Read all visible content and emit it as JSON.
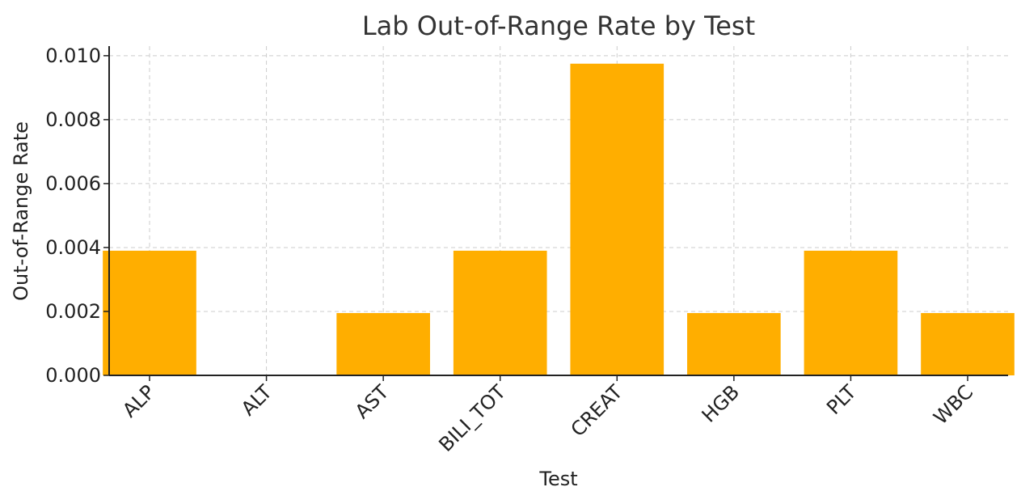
{
  "chart_data": {
    "type": "bar",
    "title": "Lab Out-of-Range Rate by Test",
    "xlabel": "Test",
    "ylabel": "Out-of-Range Rate",
    "categories": [
      "ALP",
      "ALT",
      "AST",
      "BILI_TOT",
      "CREAT",
      "HGB",
      "PLT",
      "WBC"
    ],
    "values": [
      0.0039,
      0.0,
      0.00195,
      0.0039,
      0.00975,
      0.00195,
      0.0039,
      0.00195
    ],
    "ylim": [
      0,
      0.0103
    ],
    "yticks": [
      "0.000",
      "0.002",
      "0.004",
      "0.006",
      "0.008",
      "0.010"
    ],
    "grid": true,
    "bar_color": "#FFAE00"
  }
}
